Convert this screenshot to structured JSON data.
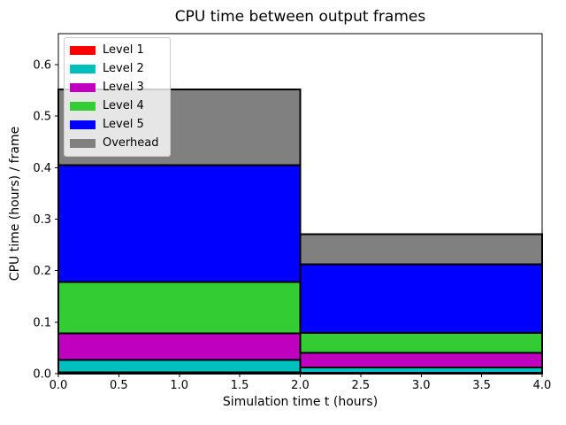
{
  "figure": {
    "title": "CPU time between output frames"
  },
  "chart_data": {
    "type": "bar",
    "stacked": true,
    "title": "CPU time between output frames",
    "xlabel": "Simulation time t (hours)",
    "ylabel": "CPU time (hours) / frame",
    "xlim": [
      0.0,
      4.0
    ],
    "ylim": [
      0.0,
      0.66
    ],
    "xticks": [
      0.0,
      0.5,
      1.0,
      1.5,
      2.0,
      2.5,
      3.0,
      3.5,
      4.0
    ],
    "yticks": [
      0.0,
      0.1,
      0.2,
      0.3,
      0.4,
      0.5,
      0.6
    ],
    "grid": false,
    "legend_position": "upper left",
    "bar_edge_color": "#000000",
    "bar_edge_width": 2,
    "bars": [
      {
        "t_start": 0.0,
        "t_end": 2.0
      },
      {
        "t_start": 2.0,
        "t_end": 4.0
      }
    ],
    "series": [
      {
        "name": "Level 1",
        "color": "#ff0000",
        "values": [
          0.003,
          0.002
        ]
      },
      {
        "name": "Level 2",
        "color": "#00bfbf",
        "values": [
          0.024,
          0.01
        ]
      },
      {
        "name": "Level 3",
        "color": "#bf00bf",
        "values": [
          0.051,
          0.028
        ]
      },
      {
        "name": "Level 4",
        "color": "#33cc33",
        "values": [
          0.1,
          0.039
        ]
      },
      {
        "name": "Level 5",
        "color": "#0000ff",
        "values": [
          0.227,
          0.133
        ]
      },
      {
        "name": "Overhead",
        "color": "#808080",
        "values": [
          0.147,
          0.059
        ]
      }
    ]
  }
}
